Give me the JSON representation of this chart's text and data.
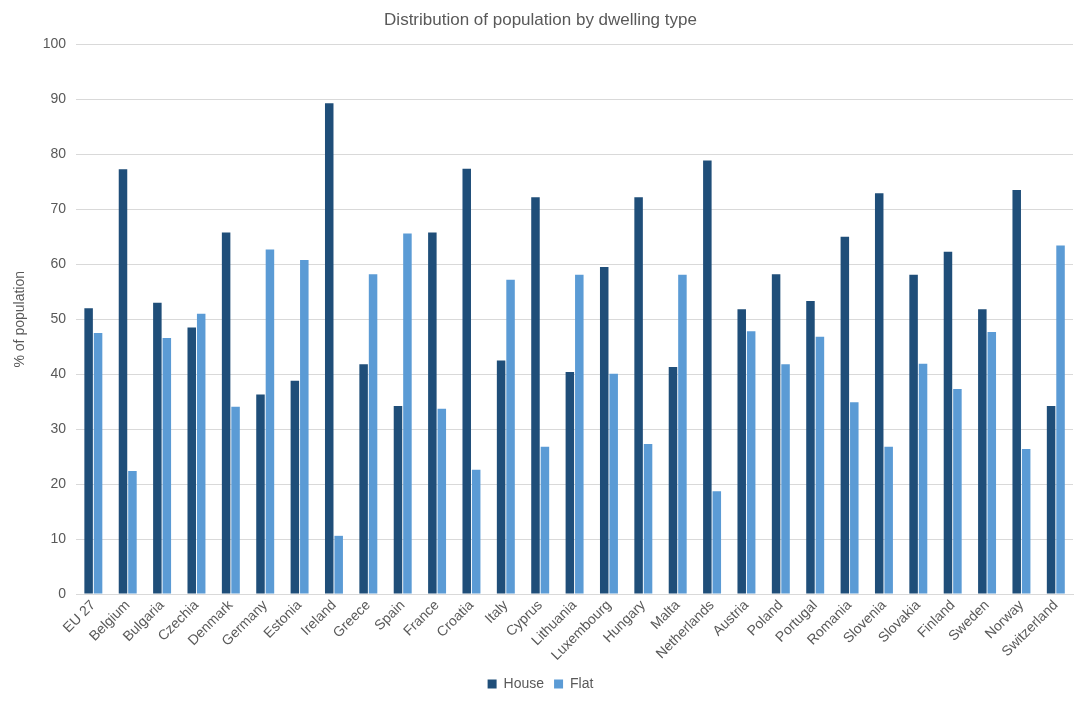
{
  "chart_data": {
    "type": "bar",
    "title": "Distribution of population by dwelling type",
    "ylabel": "% of population",
    "categories": [
      "EU 27",
      "Belgium",
      "Bulgaria",
      "Czechia",
      "Denmark",
      "Germany",
      "Estonia",
      "Ireland",
      "Greece",
      "Spain",
      "France",
      "Croatia",
      "Italy",
      "Cyprus",
      "Lithuania",
      "Luxembourg",
      "Hungary",
      "Malta",
      "Netherlands",
      "Austria",
      "Poland",
      "Portugal",
      "Romania",
      "Slovenia",
      "Slovakia",
      "Finland",
      "Sweden",
      "Norway",
      "Switzerland"
    ],
    "series": [
      {
        "name": "House",
        "color": "#1f4e79",
        "values": [
          52,
          77.3,
          53,
          48.5,
          65.8,
          36.3,
          38.8,
          89.3,
          41.8,
          34.2,
          65.8,
          77.4,
          42.5,
          72.2,
          40.4,
          59.5,
          72.2,
          41.3,
          78.9,
          51.8,
          58.2,
          53.3,
          65,
          72.9,
          58.1,
          62.3,
          51.8,
          73.5,
          34.2
        ]
      },
      {
        "name": "Flat",
        "color": "#5b9bd5",
        "values": [
          47.5,
          22.4,
          46.6,
          51,
          34.1,
          62.7,
          60.8,
          10.6,
          58.2,
          65.6,
          33.7,
          22.6,
          57.2,
          26.8,
          58.1,
          40.1,
          27.3,
          58.1,
          18.7,
          47.8,
          41.8,
          46.8,
          34.9,
          26.8,
          41.9,
          37.3,
          47.7,
          26.4,
          63.4
        ]
      }
    ],
    "ylim": [
      0,
      100
    ],
    "yticks": [
      0,
      10,
      20,
      30,
      40,
      50,
      60,
      70,
      80,
      90,
      100
    ],
    "grid": "y",
    "legend": "bottom"
  }
}
